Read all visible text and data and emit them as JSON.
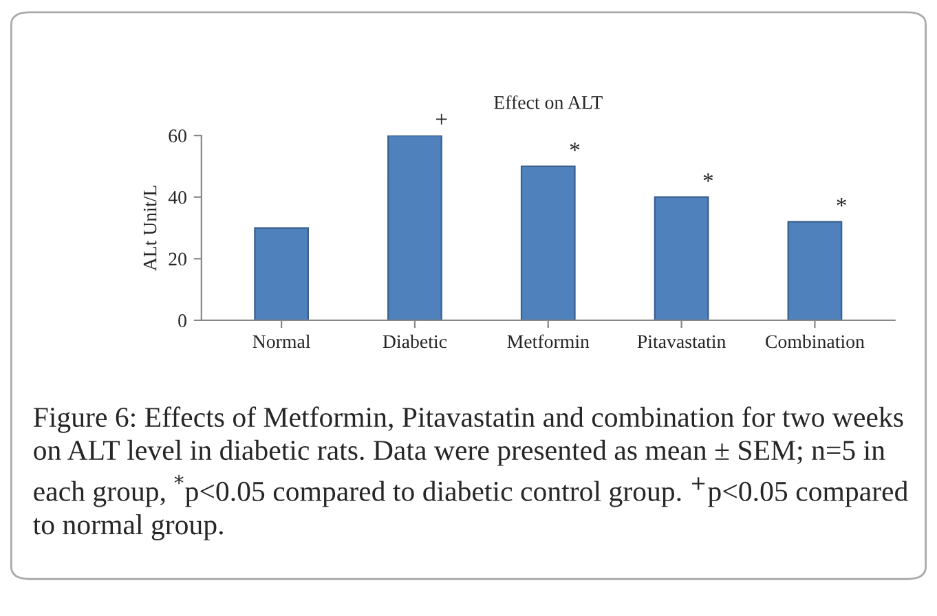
{
  "chart_data": {
    "type": "bar",
    "title": "Effect on ALT",
    "ylabel": "ALt Unit/L",
    "categories": [
      "Normal",
      "Diabetic",
      "Metformin",
      "Pitavastatin",
      "Combination"
    ],
    "values": [
      30,
      60,
      50,
      40,
      32
    ],
    "color": "#4f81bd",
    "ylim": [
      0,
      60
    ],
    "yticks": [
      0,
      20,
      40,
      60
    ],
    "grid": false,
    "annotations": [
      {
        "text": "+",
        "x": "Diabetic",
        "y": 60
      },
      {
        "text": "*",
        "x": "Metformin",
        "y": 50
      },
      {
        "text": "*",
        "x": "Pitavastatin",
        "y": 40
      },
      {
        "text": "*",
        "x": "Combination",
        "y": 32
      },
      "Figure 6: Effects of Metformin, Pitavastatin and combination for two weeks on ALT level in diabetic rats. Data were presented as mean ± SEM; n=5 in each group, $^{*}$p<0.05 compared to diabetic control group. $^{+}$p<0.05 compared to normal group."
    ]
  }
}
